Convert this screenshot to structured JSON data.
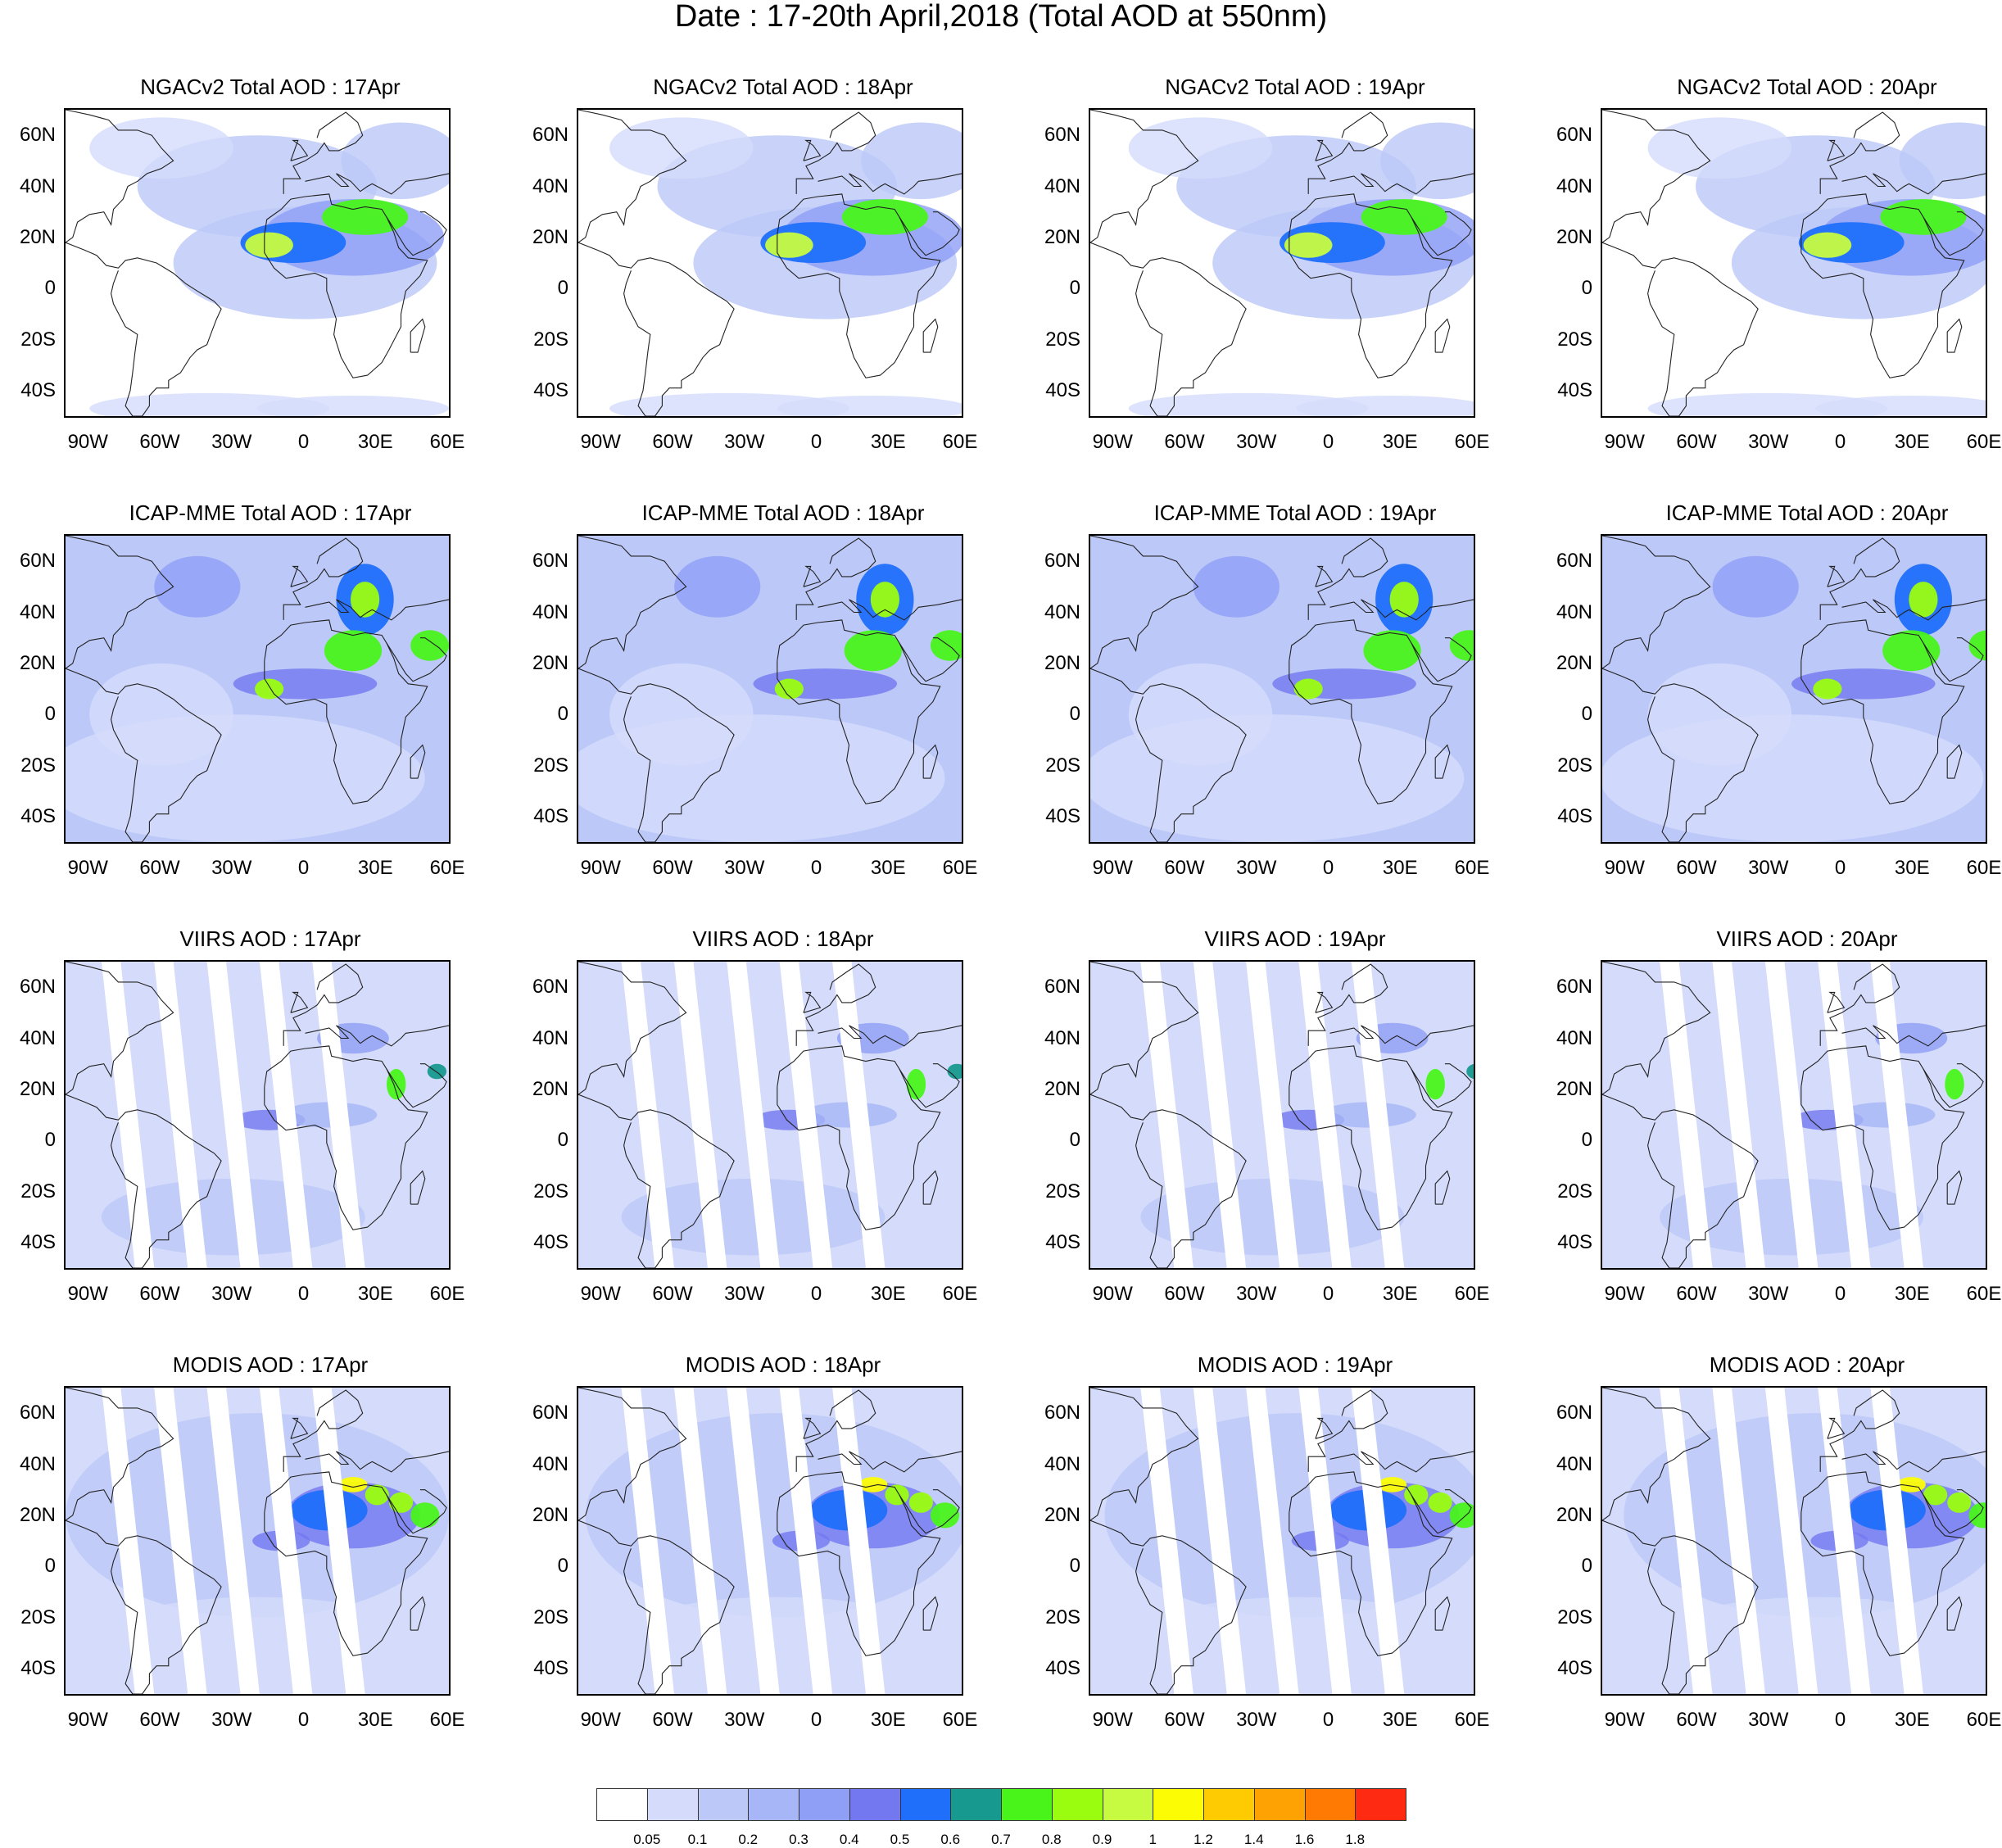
{
  "title": "Date : 17-20th April,2018 (Total AOD at 550nm)",
  "panels": [
    {
      "title": "NGACv2 Total AOD : 17Apr"
    },
    {
      "title": "NGACv2 Total AOD : 18Apr"
    },
    {
      "title": "NGACv2 Total AOD : 19Apr"
    },
    {
      "title": "NGACv2 Total AOD : 20Apr"
    },
    {
      "title": "ICAP-MME Total AOD : 17Apr"
    },
    {
      "title": "ICAP-MME Total AOD : 18Apr"
    },
    {
      "title": "ICAP-MME Total AOD : 19Apr"
    },
    {
      "title": "ICAP-MME Total AOD : 20Apr"
    },
    {
      "title": "VIIRS AOD : 17Apr"
    },
    {
      "title": "VIIRS AOD : 18Apr"
    },
    {
      "title": "VIIRS AOD : 19Apr"
    },
    {
      "title": "VIIRS AOD : 20Apr"
    },
    {
      "title": "MODIS AOD : 17Apr"
    },
    {
      "title": "MODIS AOD : 18Apr"
    },
    {
      "title": "MODIS AOD : 19Apr"
    },
    {
      "title": "MODIS AOD : 20Apr"
    }
  ],
  "axes": {
    "lat_labels": [
      "60N",
      "40N",
      "20N",
      "0",
      "20S",
      "40S"
    ],
    "lon_labels": [
      "90W",
      "60W",
      "30W",
      "0",
      "30E",
      "60E"
    ]
  },
  "colorbar": {
    "colors": [
      "#ffffff",
      "#d5dcfb",
      "#bcc8f8",
      "#a6b6f6",
      "#8f9ff6",
      "#7378f0",
      "#1f6ffb",
      "#17998f",
      "#49f41b",
      "#9afd10",
      "#c7fb41",
      "#fcfd05",
      "#fecb03",
      "#fea103",
      "#fe7a03",
      "#fe2a12"
    ],
    "ticks": [
      "0.05",
      "0.1",
      "0.2",
      "0.3",
      "0.4",
      "0.5",
      "0.6",
      "0.7",
      "0.8",
      "0.9",
      "1",
      "1.2",
      "1.4",
      "1.6",
      "1.8"
    ]
  }
}
